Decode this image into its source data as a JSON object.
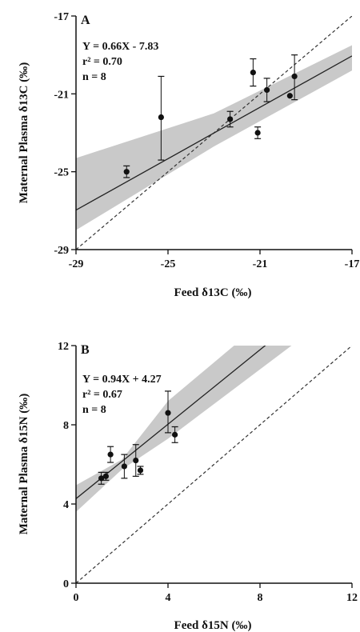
{
  "chart_data": [
    {
      "type": "scatter",
      "panel_label": "A",
      "xlabel": "Feed δ13C (‰)",
      "ylabel": "Maternal Plasma δ13C (‰)",
      "xlim": [
        -29,
        -17
      ],
      "ylim": [
        -29,
        -17
      ],
      "xticks": [
        -29,
        -25,
        -21,
        -17
      ],
      "yticks": [
        -29,
        -25,
        -21,
        -17
      ],
      "annotations": [
        "Y = 0.66X - 7.83",
        "r² = 0.70",
        "n = 8"
      ],
      "regression": {
        "slope": 0.66,
        "intercept": -7.83
      },
      "identity_line": true,
      "confidence_band": [
        {
          "x": -29,
          "lo": -28.0,
          "hi": -24.3
        },
        {
          "x": -23,
          "lo": -23.7,
          "hi": -22.0
        },
        {
          "x": -17,
          "lo": -19.8,
          "hi": -18.5
        }
      ],
      "points": [
        {
          "x": -26.8,
          "y": -25.0,
          "err_lo": 0.3,
          "err_hi": 0.3
        },
        {
          "x": -25.3,
          "y": -22.2,
          "err_lo": 2.2,
          "err_hi": 2.1
        },
        {
          "x": -22.3,
          "y": -22.3,
          "err_lo": 0.4,
          "err_hi": 0.4
        },
        {
          "x": -21.3,
          "y": -19.9,
          "err_lo": 0.7,
          "err_hi": 0.7
        },
        {
          "x": -21.1,
          "y": -23.0,
          "err_lo": 0.3,
          "err_hi": 0.3
        },
        {
          "x": -20.7,
          "y": -20.8,
          "err_lo": 0.6,
          "err_hi": 0.6
        },
        {
          "x": -19.7,
          "y": -21.1,
          "err_lo": 0.0,
          "err_hi": 0.0
        },
        {
          "x": -19.5,
          "y": -20.1,
          "err_lo": 1.2,
          "err_hi": 1.1
        }
      ]
    },
    {
      "type": "scatter",
      "panel_label": "B",
      "xlabel": "Feed δ15N (‰)",
      "ylabel": "Maternal Plasma δ15N (‰)",
      "xlim": [
        0,
        12
      ],
      "ylim": [
        0,
        12
      ],
      "xticks": [
        0,
        4,
        8,
        12
      ],
      "yticks": [
        0,
        4,
        8,
        12
      ],
      "annotations": [
        "Y = 0.94X + 4.27",
        "r² = 0.67",
        "n = 8"
      ],
      "regression": {
        "slope": 0.94,
        "intercept": 4.27
      },
      "identity_line": true,
      "confidence_band": [
        {
          "x": 0,
          "lo": 3.6,
          "hi": 4.95
        },
        {
          "x": 2,
          "lo": 5.75,
          "hi": 6.25
        },
        {
          "x": 4,
          "lo": 7.3,
          "hi": 9.2
        },
        {
          "x": 12,
          "lo": 14.3,
          "hi": 17.0
        }
      ],
      "points": [
        {
          "x": 1.1,
          "y": 5.3,
          "err_lo": 0.3,
          "err_hi": 0.3
        },
        {
          "x": 1.3,
          "y": 5.4,
          "err_lo": 0.2,
          "err_hi": 0.2
        },
        {
          "x": 1.5,
          "y": 6.5,
          "err_lo": 0.4,
          "err_hi": 0.4
        },
        {
          "x": 2.1,
          "y": 5.9,
          "err_lo": 0.6,
          "err_hi": 0.6
        },
        {
          "x": 2.6,
          "y": 6.2,
          "err_lo": 0.8,
          "err_hi": 0.8
        },
        {
          "x": 2.8,
          "y": 5.7,
          "err_lo": 0.2,
          "err_hi": 0.2
        },
        {
          "x": 4.0,
          "y": 8.6,
          "err_lo": 1.0,
          "err_hi": 1.1
        },
        {
          "x": 4.3,
          "y": 7.5,
          "err_lo": 0.4,
          "err_hi": 0.4
        }
      ]
    }
  ]
}
